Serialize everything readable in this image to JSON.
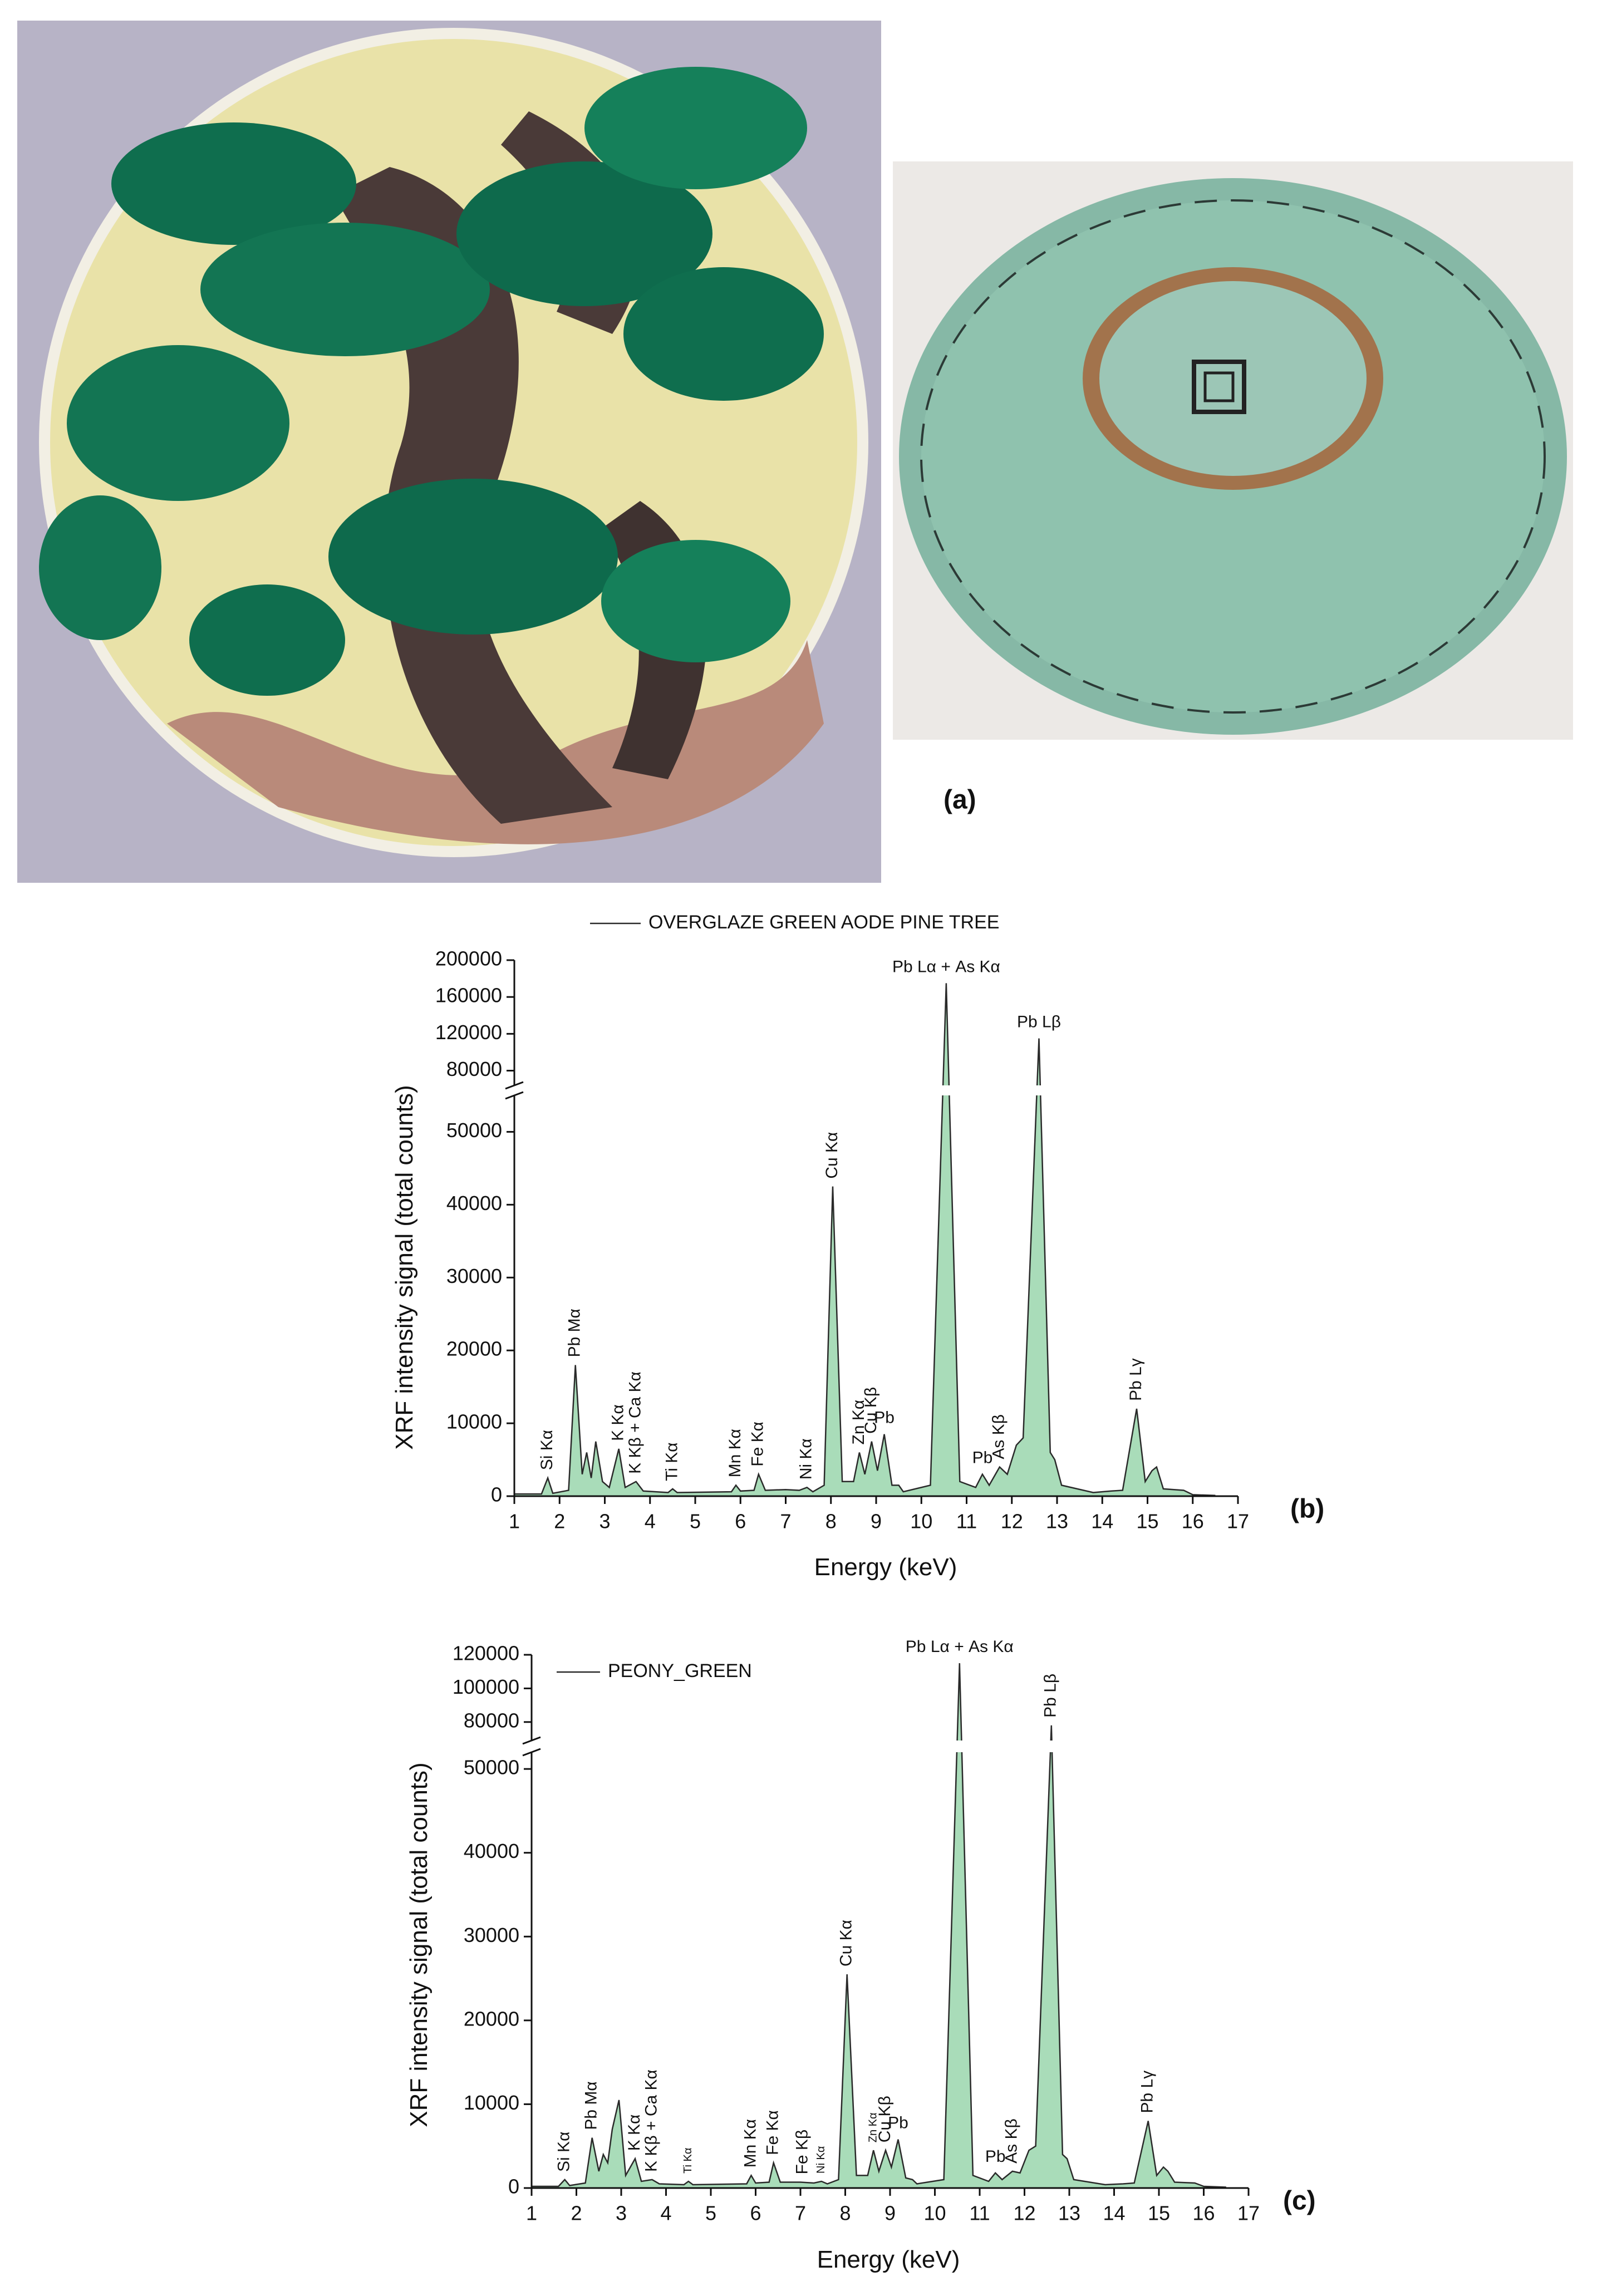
{
  "figure": {
    "panel_a": "(a)"
  },
  "chart_data": [
    {
      "type": "area",
      "legend": true,
      "panel_label": "(b)",
      "xlabel": "Energy (keV)",
      "ylabel": "XRF intensity signal (total counts)",
      "xlim": [
        1,
        17
      ],
      "xticks": [
        1,
        2,
        3,
        4,
        5,
        6,
        7,
        8,
        9,
        10,
        11,
        12,
        13,
        14,
        15,
        16,
        17
      ],
      "ylim": [
        0,
        200000
      ],
      "ybreak": [
        55000,
        64000
      ],
      "yticks": [
        0,
        10000,
        20000,
        30000,
        40000,
        50000,
        80000,
        120000,
        160000,
        200000
      ],
      "x": [
        1.0,
        1.6,
        1.74,
        1.85,
        2.2,
        2.35,
        2.5,
        2.6,
        2.7,
        2.8,
        2.95,
        3.1,
        3.31,
        3.45,
        3.69,
        3.85,
        4.4,
        4.5,
        4.6,
        5.8,
        5.9,
        6.0,
        6.3,
        6.4,
        6.55,
        7.0,
        7.3,
        7.47,
        7.6,
        7.85,
        8.04,
        8.25,
        8.5,
        8.63,
        8.75,
        8.9,
        9.03,
        9.18,
        9.35,
        9.5,
        9.6,
        10.2,
        10.55,
        10.85,
        11.2,
        11.35,
        11.5,
        11.73,
        11.9,
        12.1,
        12.25,
        12.6,
        12.85,
        12.95,
        13.1,
        13.8,
        14.2,
        14.45,
        14.76,
        14.95,
        15.1,
        15.2,
        15.35,
        15.8,
        16.0,
        16.5
      ],
      "series": [
        {
          "name": "OVERGLAZE GREEN AODE PINE TREE",
          "color": "#a9dcb9",
          "line_color": "#2a2a2a",
          "values": [
            300,
            300,
            2500,
            400,
            800,
            18000,
            3000,
            6000,
            2500,
            7500,
            2000,
            1200,
            6500,
            1200,
            2000,
            700,
            500,
            1000,
            500,
            600,
            1500,
            700,
            800,
            3000,
            800,
            900,
            800,
            1200,
            600,
            1500,
            42500,
            2000,
            2000,
            6000,
            3000,
            7500,
            3500,
            8500,
            1500,
            1500,
            600,
            1500,
            175000,
            2000,
            1200,
            3000,
            1500,
            4000,
            3000,
            7000,
            8000,
            115000,
            6000,
            5000,
            1500,
            500,
            700,
            800,
            12000,
            2000,
            3500,
            4000,
            1000,
            800,
            200,
            100
          ]
        }
      ],
      "annotations": [
        {
          "text": "Si Kα",
          "x": 1.74,
          "vertical": true
        },
        {
          "text": "Pb Mα",
          "x": 2.35,
          "vertical": true
        },
        {
          "text": "K Kα",
          "x": 3.31,
          "vertical": true
        },
        {
          "text": "K Kβ + Ca Kα",
          "x": 3.69,
          "vertical": true
        },
        {
          "text": "Ti Kα",
          "x": 4.5,
          "vertical": true
        },
        {
          "text": "Mn Kα",
          "x": 5.9,
          "vertical": true
        },
        {
          "text": "Fe Kα",
          "x": 6.4,
          "vertical": true
        },
        {
          "text": "Ni Kα",
          "x": 7.47,
          "vertical": true
        },
        {
          "text": "Cu Kα",
          "x": 8.04,
          "vertical": true
        },
        {
          "text": "Zn Kα",
          "x": 8.63,
          "vertical": true
        },
        {
          "text": "Cu Kβ",
          "x": 8.9,
          "vertical": true
        },
        {
          "text": "Pb",
          "x": 9.18,
          "vertical": false
        },
        {
          "text": "Pb Lα + As Kα",
          "x": 10.55,
          "vertical": false
        },
        {
          "text": "Pb",
          "x": 11.35,
          "vertical": false
        },
        {
          "text": "As Kβ",
          "x": 11.73,
          "vertical": true
        },
        {
          "text": "Pb Lβ",
          "x": 12.6,
          "vertical": false
        },
        {
          "text": "Pb Lγ",
          "x": 14.76,
          "vertical": true
        }
      ]
    },
    {
      "type": "area",
      "legend": true,
      "panel_label": "(c)",
      "xlabel": "Energy (keV)",
      "ylabel": "XRF intensity signal (total counts)",
      "xlim": [
        1,
        17
      ],
      "xticks": [
        1,
        2,
        3,
        4,
        5,
        6,
        7,
        8,
        9,
        10,
        11,
        12,
        13,
        14,
        15,
        16,
        17
      ],
      "ylim": [
        0,
        120000
      ],
      "ybreak": [
        52000,
        69000
      ],
      "yticks": [
        0,
        10000,
        20000,
        30000,
        40000,
        50000,
        80000,
        100000,
        120000
      ],
      "x": [
        1.0,
        1.6,
        1.74,
        1.85,
        2.2,
        2.35,
        2.5,
        2.6,
        2.7,
        2.8,
        2.95,
        3.1,
        3.31,
        3.45,
        3.69,
        3.85,
        4.4,
        4.5,
        4.6,
        5.8,
        5.9,
        6.0,
        6.3,
        6.4,
        6.55,
        7.0,
        7.3,
        7.47,
        7.6,
        7.85,
        8.04,
        8.25,
        8.5,
        8.63,
        8.75,
        8.9,
        9.03,
        9.18,
        9.35,
        9.5,
        9.6,
        10.2,
        10.55,
        10.85,
        11.2,
        11.35,
        11.5,
        11.73,
        11.9,
        12.1,
        12.25,
        12.6,
        12.85,
        12.95,
        13.1,
        13.8,
        14.2,
        14.45,
        14.76,
        14.95,
        15.1,
        15.2,
        15.35,
        15.8,
        16.0,
        16.5
      ],
      "series": [
        {
          "name": "PEONY_GREEN",
          "color": "#a9dcb9",
          "line_color": "#2a2a2a",
          "values": [
            200,
            200,
            1000,
            300,
            600,
            6000,
            2000,
            4000,
            3000,
            7000,
            10500,
            1500,
            3500,
            800,
            1000,
            500,
            400,
            800,
            400,
            500,
            1500,
            600,
            700,
            3000,
            700,
            700,
            600,
            800,
            500,
            1000,
            25500,
            1500,
            1500,
            4500,
            2000,
            4500,
            2500,
            5800,
            1200,
            1000,
            500,
            1000,
            115000,
            1500,
            800,
            1800,
            1000,
            2000,
            1800,
            4500,
            5000,
            78000,
            4000,
            3500,
            1000,
            400,
            500,
            600,
            8000,
            1500,
            2500,
            2000,
            700,
            600,
            200,
            100
          ]
        }
      ],
      "annotations": [
        {
          "text": "Si Kα",
          "x": 1.74,
          "vertical": true
        },
        {
          "text": "Pb Mα",
          "x": 2.35,
          "vertical": true
        },
        {
          "text": "K Kα",
          "x": 3.31,
          "vertical": true
        },
        {
          "text": "K Kβ + Ca Kα",
          "x": 3.69,
          "vertical": true
        },
        {
          "text": "Ti Kα",
          "x": 4.5,
          "vertical": true,
          "small": true
        },
        {
          "text": "Mn Kα",
          "x": 5.9,
          "vertical": true
        },
        {
          "text": "Fe Kα",
          "x": 6.4,
          "vertical": true
        },
        {
          "text": "Fe Kβ",
          "x": 7.06,
          "vertical": true
        },
        {
          "text": "Ni Kα",
          "x": 7.47,
          "vertical": true,
          "small": true
        },
        {
          "text": "Cu Kα",
          "x": 8.04,
          "vertical": true
        },
        {
          "text": "Zn Kα",
          "x": 8.63,
          "vertical": true,
          "small": true
        },
        {
          "text": "Cu Kβ",
          "x": 8.9,
          "vertical": true
        },
        {
          "text": "Pb",
          "x": 9.18,
          "vertical": false
        },
        {
          "text": "Pb Lα + As Kα",
          "x": 10.55,
          "vertical": false
        },
        {
          "text": "Pb",
          "x": 11.35,
          "vertical": false
        },
        {
          "text": "As Kβ",
          "x": 11.73,
          "vertical": true
        },
        {
          "text": "Pb Lβ",
          "x": 12.6,
          "vertical": true
        },
        {
          "text": "Pb Lγ",
          "x": 14.76,
          "vertical": true
        }
      ]
    }
  ]
}
